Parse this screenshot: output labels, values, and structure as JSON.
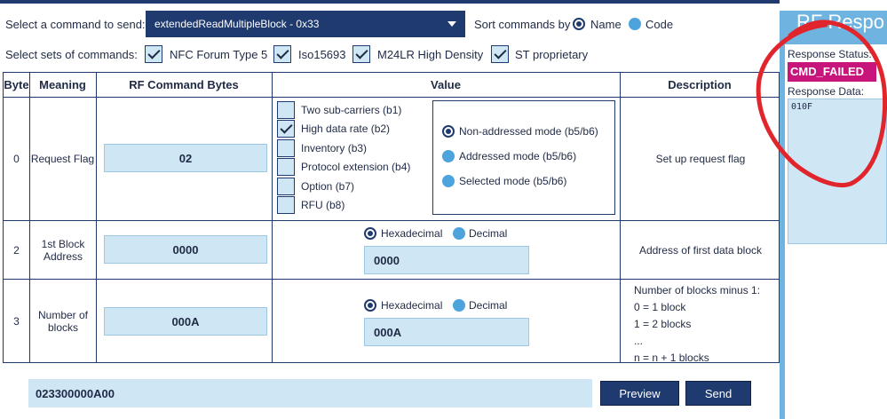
{
  "header": {
    "select_command_label": "Select a command to send:",
    "command_selected": "extendedReadMultipleBlock - 0x33",
    "sort_label": "Sort commands by",
    "sort_options": [
      {
        "label": "Name",
        "selected": true
      },
      {
        "label": "Code",
        "selected": false
      }
    ],
    "sets_label": "Select sets of commands:",
    "sets": [
      {
        "label": "NFC Forum Type 5",
        "checked": true
      },
      {
        "label": "Iso15693",
        "checked": true
      },
      {
        "label": "M24LR High Density",
        "checked": true
      },
      {
        "label": "ST proprietary",
        "checked": true
      }
    ]
  },
  "table": {
    "headers": [
      "Byte",
      "Meaning",
      "RF Command Bytes",
      "Value",
      "Description"
    ],
    "rows": [
      {
        "byte": "0",
        "meaning": "Request Flag",
        "rf_bytes": "02",
        "flags": [
          {
            "label": "Two sub-carriers (b1)",
            "checked": false
          },
          {
            "label": "High data rate (b2)",
            "checked": true
          },
          {
            "label": "Inventory (b3)",
            "checked": false
          },
          {
            "label": "Protocol extension (b4)",
            "checked": false
          },
          {
            "label": "Option (b7)",
            "checked": false
          },
          {
            "label": "RFU (b8)",
            "checked": false
          }
        ],
        "modes": [
          {
            "label": "Non-addressed mode (b5/b6)",
            "selected": true
          },
          {
            "label": "Addressed mode (b5/b6)",
            "selected": false
          },
          {
            "label": "Selected mode (b5/b6)",
            "selected": false
          }
        ],
        "description": "Set up request flag"
      },
      {
        "byte": "2",
        "meaning": "1st Block Address",
        "rf_bytes": "0000",
        "format_options": [
          {
            "label": "Hexadecimal",
            "selected": true
          },
          {
            "label": "Decimal",
            "selected": false
          }
        ],
        "value": "0000",
        "description": "Address of first data block"
      },
      {
        "byte": "3",
        "meaning": "Number of blocks",
        "rf_bytes": "000A",
        "format_options": [
          {
            "label": "Hexadecimal",
            "selected": true
          },
          {
            "label": "Decimal",
            "selected": false
          }
        ],
        "value": "000A",
        "description_lines": [
          "Number of blocks minus 1:",
          "0 = 1 block",
          "1 = 2 blocks",
          "...",
          "n = n + 1 blocks"
        ]
      }
    ]
  },
  "footer": {
    "command_bytes": "023300000A00",
    "preview_label": "Preview",
    "send_label": "Send"
  },
  "response": {
    "title": "RF Respo",
    "status_label": "Response Status:",
    "status_value": "CMD_FAILED",
    "data_label": "Response Data:",
    "data_value": "010F"
  },
  "colors": {
    "navy": "#1f3a6e",
    "light_blue": "#cfe6f5",
    "radio_blue": "#4da3dc",
    "status_magenta": "#c8157c",
    "annotation_red": "#e0262c"
  }
}
